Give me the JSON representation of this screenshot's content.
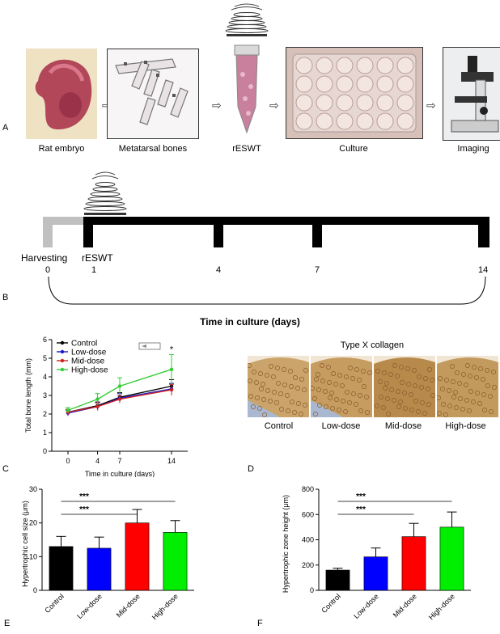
{
  "panelA": {
    "label": "A",
    "steps": [
      "Rat embryo",
      "Metatarsal bones",
      "rESWT",
      "Culture",
      "Imaging"
    ]
  },
  "panelB": {
    "label": "B",
    "events": [
      "Harvesting",
      "rESWT"
    ],
    "days": [
      "0",
      "1",
      "4",
      "7",
      "14"
    ],
    "axis_title": "Time in culture (days)"
  },
  "panelC": {
    "label": "C",
    "chart_data": {
      "type": "line",
      "title": "",
      "xlabel": "Time in culture  (days)",
      "ylabel": "Total bone length (mm)",
      "x": [
        0,
        4,
        7,
        14
      ],
      "xticks": [
        "0",
        "4",
        "7",
        "14"
      ],
      "yticks": [
        "0",
        "1",
        "2",
        "3",
        "4",
        "5",
        "6"
      ],
      "ylim": [
        0,
        6
      ],
      "series": [
        {
          "name": "Control",
          "color": "#000000",
          "values": [
            2.1,
            2.45,
            2.9,
            3.5
          ],
          "err": [
            0.15,
            0.2,
            0.25,
            0.35
          ]
        },
        {
          "name": "Low-dose",
          "color": "#1a1acc",
          "values": [
            2.05,
            2.4,
            2.85,
            3.35
          ],
          "err": [
            0.15,
            0.2,
            0.25,
            0.3
          ]
        },
        {
          "name": "Mid-dose",
          "color": "#cc2222",
          "values": [
            2.1,
            2.4,
            2.8,
            3.3
          ],
          "err": [
            0.15,
            0.2,
            0.2,
            0.3
          ]
        },
        {
          "name": "High-dose",
          "color": "#33cc33",
          "values": [
            2.2,
            2.8,
            3.5,
            4.4
          ],
          "err": [
            0.15,
            0.3,
            0.45,
            0.8
          ]
        }
      ],
      "annotation": "*"
    }
  },
  "panelD": {
    "label": "D",
    "title": "Type X collagen",
    "groups": [
      "Control",
      "Low-dose",
      "Mid-dose",
      "High-dose"
    ]
  },
  "panelE": {
    "label": "E",
    "chart_data": {
      "type": "bar",
      "title": "",
      "xlabel": "",
      "ylabel": "Hypertrophic cell size (μm)",
      "categories": [
        "Control",
        "Low-dose",
        "Mid-dose",
        "High-dose"
      ],
      "values": [
        13,
        12.5,
        20,
        17.2
      ],
      "err": [
        3,
        3.3,
        4,
        3.5
      ],
      "colors": [
        "#000000",
        "#0000ff",
        "#ff0000",
        "#00ee00"
      ],
      "ylim": [
        0,
        30
      ],
      "yticks": [
        "0",
        "10",
        "20",
        "30"
      ],
      "sig": [
        "***",
        "***"
      ]
    }
  },
  "panelF": {
    "label": "F",
    "chart_data": {
      "type": "bar",
      "title": "",
      "xlabel": "",
      "ylabel": "Hypertrophic zone height  (μm)",
      "categories": [
        "Control",
        "Low-dose",
        "Mid-dose",
        "High-dose"
      ],
      "values": [
        160,
        265,
        425,
        500
      ],
      "err": [
        15,
        70,
        105,
        120
      ],
      "colors": [
        "#000000",
        "#0000ff",
        "#ff0000",
        "#00ee00"
      ],
      "ylim": [
        0,
        800
      ],
      "yticks": [
        "0",
        "200",
        "400",
        "600",
        "800"
      ],
      "sig": [
        "***",
        "***"
      ]
    }
  }
}
